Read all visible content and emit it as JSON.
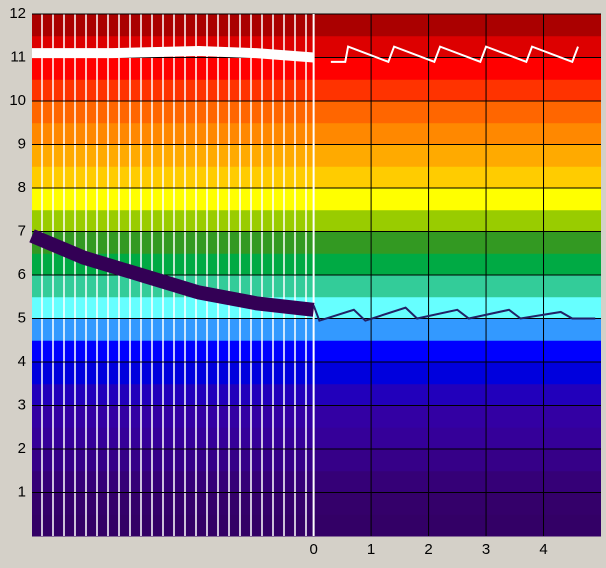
{
  "chart_data": {
    "type": "line",
    "xlim": [
      -4.9,
      5.0
    ],
    "ylim": [
      0,
      12
    ],
    "xticks": [
      0,
      1,
      2,
      3,
      4
    ],
    "yticks": [
      1,
      2,
      3,
      4,
      5,
      6,
      7,
      8,
      9,
      10,
      11,
      12
    ],
    "grid": true,
    "background_colors": [
      "#330066",
      "#34006a",
      "#350077",
      "#360088",
      "#350099",
      "#3300a3",
      "#2200bb",
      "#0000dd",
      "#0000ff",
      "#3399ff",
      "#66ffff",
      "#33cc99",
      "#00aa44",
      "#339922",
      "#99cc00",
      "#ffff00",
      "#ffcc00",
      "#ffaa00",
      "#ff8800",
      "#ff6600",
      "#ff3300",
      "#ff0000",
      "#dd0000",
      "#aa0000"
    ],
    "series": [
      {
        "color": "#ffffff",
        "x": [
          -4.9,
          -3.5,
          -2.0,
          -1.0,
          0.0
        ],
        "values": [
          11.1,
          11.1,
          11.15,
          11.1,
          11.0
        ]
      },
      {
        "color": "#330055",
        "x": [
          -4.9,
          -4.0,
          -3.0,
          -2.0,
          -1.0,
          0.0
        ],
        "values": [
          6.9,
          6.4,
          6.0,
          5.6,
          5.35,
          5.2
        ]
      },
      {
        "color": "#ffffff",
        "x": [
          0.3,
          0.55,
          0.6,
          1.3,
          1.4,
          2.1,
          2.2,
          2.9,
          3.0,
          3.7,
          3.8,
          4.5,
          4.6
        ],
        "values": [
          10.9,
          10.9,
          11.25,
          10.9,
          11.25,
          10.9,
          11.25,
          10.9,
          11.25,
          10.9,
          11.25,
          10.9,
          11.25
        ]
      },
      {
        "color": "#222266",
        "x": [
          0.0,
          0.1,
          0.7,
          0.9,
          1.6,
          1.8,
          2.5,
          2.7,
          3.4,
          3.6,
          4.3,
          4.5,
          4.9
        ],
        "values": [
          5.3,
          4.95,
          5.2,
          4.95,
          5.25,
          5.0,
          5.2,
          5.0,
          5.2,
          5.0,
          5.15,
          5.0,
          5.0
        ]
      }
    ]
  }
}
